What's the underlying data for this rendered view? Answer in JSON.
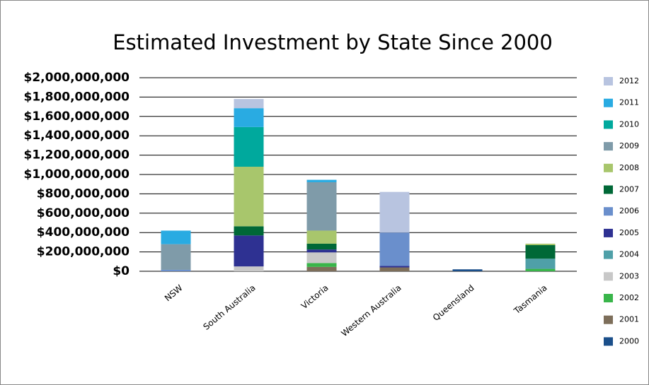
{
  "chart_data": {
    "type": "stacked_bar",
    "title": "Estimated Investment by State Since 2000",
    "categories": [
      "NSW",
      "South Australia",
      "Victoria",
      "Western Australia",
      "Queensland",
      "Tasmania"
    ],
    "series": [
      {
        "name": "2000",
        "color": "#1b4f8a",
        "values": [
          0,
          0,
          0,
          0,
          20000000,
          0
        ]
      },
      {
        "name": "2001",
        "color": "#7d6e5a",
        "values": [
          0,
          0,
          45000000,
          40000000,
          0,
          0
        ]
      },
      {
        "name": "2002",
        "color": "#39b54a",
        "values": [
          0,
          0,
          40000000,
          0,
          0,
          25000000
        ]
      },
      {
        "name": "2003",
        "color": "#c8c8c8",
        "values": [
          0,
          50000000,
          110000000,
          0,
          0,
          0
        ]
      },
      {
        "name": "2004",
        "color": "#4fa0a8",
        "values": [
          0,
          0,
          0,
          0,
          0,
          105000000
        ]
      },
      {
        "name": "2005",
        "color": "#2e3192",
        "values": [
          0,
          320000000,
          30000000,
          15000000,
          0,
          0
        ]
      },
      {
        "name": "2006",
        "color": "#6a8fcc",
        "values": [
          15000000,
          0,
          0,
          345000000,
          0,
          0
        ]
      },
      {
        "name": "2007",
        "color": "#006837",
        "values": [
          0,
          95000000,
          60000000,
          0,
          0,
          140000000
        ]
      },
      {
        "name": "2008",
        "color": "#a8c66c",
        "values": [
          0,
          615000000,
          135000000,
          0,
          0,
          15000000
        ]
      },
      {
        "name": "2009",
        "color": "#7f9ba9",
        "values": [
          265000000,
          0,
          500000000,
          0,
          0,
          0
        ]
      },
      {
        "name": "2010",
        "color": "#00a99d",
        "values": [
          0,
          410000000,
          0,
          0,
          0,
          0
        ]
      },
      {
        "name": "2011",
        "color": "#29abe2",
        "values": [
          140000000,
          195000000,
          25000000,
          0,
          0,
          0
        ]
      },
      {
        "name": "2012",
        "color": "#b8c4e0",
        "values": [
          0,
          95000000,
          0,
          420000000,
          0,
          0
        ]
      }
    ],
    "ylim": [
      0,
      2000000000
    ],
    "yticks": [
      {
        "value": 0,
        "label": "$0"
      },
      {
        "value": 200000000,
        "label": "$200,000,000"
      },
      {
        "value": 400000000,
        "label": "$400,000,000"
      },
      {
        "value": 600000000,
        "label": "$600,000,000"
      },
      {
        "value": 800000000,
        "label": "$800,000,000"
      },
      {
        "value": 1000000000,
        "label": "$1,000,000,000"
      },
      {
        "value": 1200000000,
        "label": "$1,200,000,000"
      },
      {
        "value": 1400000000,
        "label": "$1,400,000,000"
      },
      {
        "value": 1600000000,
        "label": "$1,600,000,000"
      },
      {
        "value": 1800000000,
        "label": "$1,800,000,000"
      },
      {
        "value": 2000000000,
        "label": "$2,000,000,000"
      }
    ],
    "grid": true,
    "legend": "right"
  }
}
